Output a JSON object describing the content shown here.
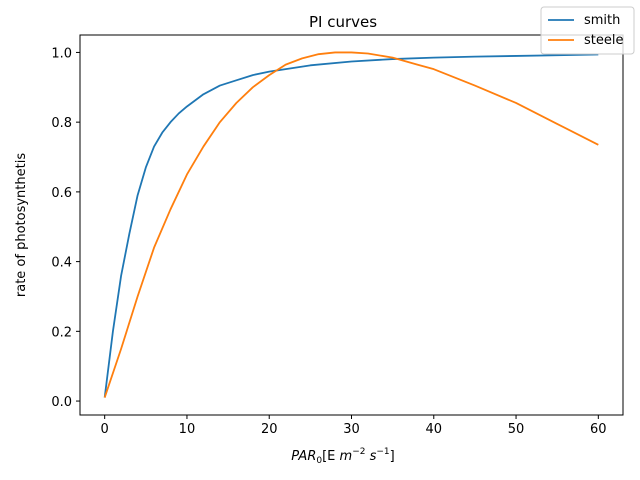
{
  "chart_data": {
    "type": "line",
    "title": "PI curves",
    "xlabel": {
      "base": "PAR",
      "sub": "0",
      "unit_prefix": "[E ",
      "m": "m",
      "m_exp": "−2",
      "s": "s",
      "s_exp": "−1",
      "unit_suffix": "]"
    },
    "ylabel": "rate of photosynthetis",
    "xlim": [
      -3,
      63
    ],
    "ylim": [
      -0.04,
      1.05
    ],
    "xticks": [
      0,
      10,
      20,
      30,
      40,
      50,
      60
    ],
    "yticks": [
      0.0,
      0.2,
      0.4,
      0.6,
      0.8,
      1.0
    ],
    "ytick_labels": [
      "0.0",
      "0.2",
      "0.4",
      "0.6",
      "0.8",
      "1.0"
    ],
    "legend_position": "top-right",
    "series": [
      {
        "name": "smith",
        "color": "#1f77b4",
        "x": [
          0,
          1,
          2,
          3,
          4,
          5,
          6,
          7,
          8,
          9,
          10,
          12,
          14,
          16,
          18,
          20,
          25,
          30,
          35,
          40,
          45,
          50,
          55,
          60
        ],
        "y": [
          0.01,
          0.2,
          0.36,
          0.48,
          0.59,
          0.67,
          0.73,
          0.77,
          0.8,
          0.825,
          0.845,
          0.88,
          0.905,
          0.92,
          0.935,
          0.945,
          0.963,
          0.974,
          0.981,
          0.985,
          0.988,
          0.99,
          0.992,
          0.994
        ]
      },
      {
        "name": "steele",
        "color": "#ff7f0e",
        "x": [
          0,
          2,
          4,
          6,
          8,
          10,
          12,
          14,
          16,
          18,
          20,
          22,
          24,
          26,
          28,
          30,
          32,
          35,
          38,
          40,
          45,
          50,
          55,
          60
        ],
        "y": [
          0.01,
          0.15,
          0.3,
          0.44,
          0.55,
          0.65,
          0.73,
          0.8,
          0.855,
          0.9,
          0.935,
          0.965,
          0.983,
          0.995,
          1.0,
          1.0,
          0.997,
          0.985,
          0.965,
          0.952,
          0.905,
          0.855,
          0.795,
          0.735
        ]
      }
    ]
  }
}
